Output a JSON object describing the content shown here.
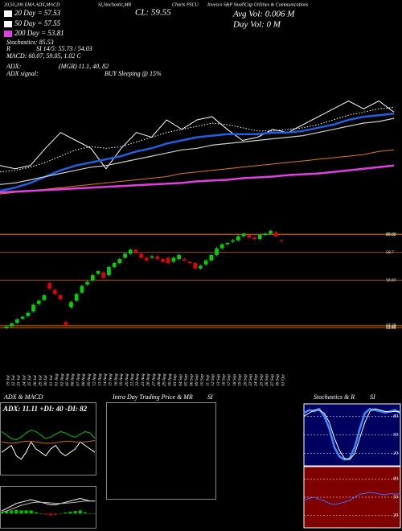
{
  "header": {
    "items": [
      "20,50,200 EMA ADX,MACD",
      "SI,Stochastic,MR",
      "Charts PSCU",
      "Invesco S&P SmallCap Utilities & Communications",
      "CL: 59.55",
      "Avg Vol: 0.006  M",
      "Day Vol: 0   M",
      "20 Day = 57.53",
      "50 Day = 57.55",
      "200 Day = 53.81",
      "Stochastics: 85.53",
      "R",
      "SI 14/5: 55.73 / 54.03",
      "MACD: 60.07, 59.05, 1.02  C",
      "ADX:",
      "(MGR) 11.1, 40, 82",
      "ADX  signal:",
      "BUY Sleeping @ 15%"
    ]
  },
  "chart_data": [
    {
      "type": "line",
      "categories": [
        null,
        null,
        null,
        null,
        null,
        null,
        null,
        null,
        null,
        null,
        null,
        null,
        null,
        null,
        null,
        null,
        null,
        null,
        null,
        null,
        null,
        null,
        null,
        null,
        null,
        null,
        null
      ],
      "ylim": [
        50,
        62
      ],
      "series": [
        {
          "color": "#ffffff",
          "style": "solid",
          "values": [
            52.0,
            51.8,
            52.0,
            53.1,
            54.1,
            53.6,
            53.1,
            51.8,
            53.1,
            54.1,
            53.8,
            54.9,
            54.3,
            54.9,
            55.1,
            54.3,
            53.6,
            53.8,
            54.3,
            54.1,
            54.6,
            55.1,
            55.6,
            56.1,
            55.6,
            56.1,
            55.4
          ]
        },
        {
          "color": "#ffffff",
          "style": "dotted",
          "values": [
            51.6,
            51.7,
            51.9,
            52.2,
            52.6,
            53.0,
            53.2,
            53.1,
            53.2,
            53.5,
            53.8,
            54.1,
            54.3,
            54.5,
            54.7,
            54.6,
            54.4,
            54.2,
            54.2,
            54.3,
            54.4,
            54.6,
            54.9,
            55.2,
            55.4,
            55.6,
            55.7
          ]
        },
        {
          "color": "#1f5fe0",
          "style": "thick",
          "values": [
            50.4,
            50.6,
            50.9,
            51.3,
            51.7,
            52.0,
            52.2,
            52.4,
            52.6,
            52.9,
            53.1,
            53.4,
            53.6,
            53.8,
            53.9,
            54.0,
            54.0,
            54.0,
            54.1,
            54.1,
            54.2,
            54.4,
            54.6,
            54.9,
            55.1,
            55.2,
            55.3
          ]
        },
        {
          "color": "#cccccc",
          "style": "band",
          "values": [
            50.8,
            50.9,
            51.1,
            51.3,
            51.5,
            51.7,
            51.9,
            52.0,
            52.2,
            52.4,
            52.6,
            52.8,
            53.0,
            53.1,
            53.3,
            53.4,
            53.5,
            53.6,
            53.7,
            53.8,
            53.9,
            54.1,
            54.3,
            54.5,
            54.7,
            54.8,
            55.0
          ]
        },
        {
          "color": "#e07a10",
          "style": "solid",
          "values": [
            50.2,
            50.3,
            50.4,
            50.5,
            50.6,
            50.7,
            50.8,
            50.9,
            51.0,
            51.1,
            51.2,
            51.3,
            51.5,
            51.6,
            51.7,
            51.8,
            51.9,
            52.0,
            52.1,
            52.2,
            52.3,
            52.4,
            52.5,
            52.6,
            52.7,
            52.9,
            53.0
          ]
        },
        {
          "color": "#e040e0",
          "style": "thick",
          "values": [
            50.3,
            50.35,
            50.4,
            50.45,
            50.5,
            50.55,
            50.6,
            50.65,
            50.7,
            50.75,
            50.8,
            50.85,
            50.9,
            51.0,
            51.05,
            51.1,
            51.2,
            51.25,
            51.3,
            51.4,
            51.45,
            51.5,
            51.6,
            51.7,
            51.8,
            51.9,
            52.0
          ]
        }
      ]
    },
    {
      "type": "candlestick",
      "ylim": [
        52.8,
        60.6
      ],
      "up_color": "#00d000",
      "down_color": "#e00000",
      "level_color": "#b05a00",
      "levels": [
        60.06,
        60.02,
        58.7,
        56.63,
        53.26,
        53.16,
        53.06
      ],
      "categories": [
        "19 Jul",
        "22 Jul",
        "23 Jul",
        "24 Jul",
        "25 Jul",
        "26 Jul",
        "29 Jul",
        "30 Jul",
        "31 Jul",
        "01 Aug",
        "02 Aug",
        "05 Aug",
        "06 Aug",
        "07 Aug",
        "08 Aug",
        "09 Aug",
        "12 Aug",
        "13 Aug",
        "14 Aug",
        "15 Aug",
        "16 Aug",
        "19 Aug",
        "20 Aug",
        "21 Aug",
        "22 Aug",
        "23 Aug",
        "26 Aug",
        "27 Aug",
        "28 Aug",
        "29 Aug",
        "30 Aug",
        "03 Sep",
        "04 Sep",
        "05 Sep",
        "06 Sep",
        "09 Sep",
        "10 Sep",
        "11 Sep",
        "12 Sep",
        "13 Sep",
        "16 Sep",
        "17 Sep",
        "18 Sep",
        "19 Sep",
        "20 Sep",
        "23 Sep",
        "24 Sep",
        "25 Sep",
        "26 Sep",
        "27 Sep",
        "30 Sep",
        "01 Oct"
      ],
      "open": [
        53.05,
        53.2,
        53.45,
        53.75,
        53.95,
        54.3,
        54.85,
        55.15,
        56.4,
        55.9,
        55.5,
        53.5,
        54.6,
        55.1,
        55.7,
        56.3,
        56.6,
        57.1,
        57.2,
        57.0,
        57.6,
        57.9,
        58.3,
        58.6,
        58.9,
        58.6,
        58.3,
        58.3,
        58.4,
        58.2,
        58.3,
        58.0,
        58.2,
        58.2,
        58.0,
        57.9,
        57.5,
        57.8,
        58.1,
        58.5,
        59.0,
        59.3,
        59.5,
        59.6,
        59.9,
        60.0,
        59.8,
        59.7,
        60.0,
        60.1,
        60.2,
        59.6
      ],
      "high": [
        53.25,
        53.5,
        53.8,
        54.0,
        54.3,
        54.9,
        55.2,
        55.6,
        56.5,
        56.0,
        55.6,
        53.6,
        55.1,
        55.7,
        56.3,
        56.6,
        57.1,
        57.4,
        57.3,
        57.7,
        58.0,
        58.3,
        58.7,
        59.0,
        59.0,
        58.7,
        58.4,
        58.5,
        58.5,
        58.3,
        58.4,
        58.4,
        58.6,
        58.3,
        58.1,
        58.0,
        57.8,
        58.2,
        58.6,
        59.1,
        59.4,
        59.5,
        59.7,
        60.0,
        60.2,
        60.1,
        59.9,
        60.1,
        60.2,
        60.4,
        60.3,
        59.7
      ],
      "low": [
        52.95,
        53.1,
        53.35,
        53.65,
        53.85,
        54.2,
        54.75,
        55.05,
        55.9,
        55.5,
        55.1,
        53.2,
        54.5,
        55.0,
        55.6,
        56.2,
        56.5,
        57.0,
        56.7,
        56.9,
        57.5,
        57.8,
        58.2,
        58.5,
        58.6,
        58.2,
        58.0,
        58.2,
        58.1,
        57.9,
        57.8,
        57.9,
        58.1,
        58.0,
        57.8,
        57.4,
        57.4,
        57.7,
        58.0,
        58.4,
        58.9,
        59.2,
        59.4,
        59.5,
        59.8,
        59.7,
        59.6,
        59.6,
        59.9,
        60.0,
        59.8,
        59.45
      ],
      "close": [
        53.15,
        53.4,
        53.7,
        53.9,
        54.2,
        54.8,
        55.1,
        55.5,
        56.0,
        55.6,
        55.2,
        53.3,
        55.0,
        55.6,
        56.2,
        56.5,
        57.0,
        57.3,
        56.8,
        57.6,
        57.9,
        58.2,
        58.6,
        58.9,
        58.7,
        58.3,
        58.1,
        58.4,
        58.2,
        58.0,
        57.9,
        58.3,
        58.5,
        58.1,
        57.9,
        57.5,
        57.7,
        58.1,
        58.5,
        59.0,
        59.3,
        59.4,
        59.6,
        59.9,
        60.1,
        59.8,
        59.7,
        60.0,
        60.1,
        60.3,
        59.9,
        59.55
      ]
    },
    {
      "type": "line",
      "title": "ADX & MACD",
      "subtitle": "ADX: 11.11 +DI: 40 -DI: 82",
      "ylim": [
        0,
        100
      ],
      "categories": [
        null,
        null,
        null,
        null,
        null,
        null,
        null,
        null,
        null,
        null,
        null,
        null,
        null,
        null,
        null,
        null,
        null,
        null,
        null,
        null
      ],
      "series": [
        {
          "color": "#00c000",
          "style": "solid",
          "values": [
            60,
            55,
            50,
            48,
            52,
            58,
            62,
            60,
            55,
            50,
            52,
            56,
            60,
            58,
            54,
            52,
            56,
            60,
            58,
            50
          ]
        },
        {
          "color": "#ffffff",
          "style": "solid",
          "values": [
            30,
            35,
            40,
            25,
            20,
            30,
            45,
            35,
            30,
            25,
            35,
            40,
            30,
            25,
            30,
            35,
            45,
            40,
            35,
            30
          ]
        },
        {
          "color": "#d07010",
          "style": "solid",
          "values": [
            45,
            44,
            43,
            44,
            45,
            46,
            46,
            45,
            44,
            43,
            43,
            44,
            45,
            46,
            46,
            45,
            44,
            45,
            46,
            47
          ]
        }
      ]
    },
    {
      "type": "macd",
      "ylim": [
        -1,
        2
      ],
      "up_color": "#00c000",
      "down_color": "#c00000",
      "categories": [
        null,
        null,
        null,
        null,
        null,
        null,
        null,
        null,
        null,
        null,
        null,
        null,
        null,
        null,
        null,
        null,
        null,
        null,
        null,
        null
      ],
      "histogram": [
        0.1,
        0.2,
        0.25,
        0.3,
        0.25,
        0.25,
        0.25,
        0.1,
        0,
        -0.08,
        -0.15,
        -0.1,
        0,
        0.08,
        0.14,
        0.2,
        0.25,
        0.1,
        0,
        0
      ],
      "series": [
        {
          "color": "#ffffff",
          "style": "solid",
          "values": [
            0.2,
            0.4,
            0.6,
            0.8,
            0.9,
            1.0,
            1.1,
            1.0,
            0.9,
            0.8,
            0.7,
            0.7,
            0.8,
            0.9,
            1.0,
            1.1,
            1.2,
            1.1,
            1.0,
            1.0
          ]
        },
        {
          "color": "#bbbbbb",
          "style": "solid",
          "values": [
            0.1,
            0.2,
            0.35,
            0.5,
            0.65,
            0.75,
            0.85,
            0.9,
            0.9,
            0.88,
            0.85,
            0.8,
            0.8,
            0.82,
            0.86,
            0.9,
            0.95,
            1.0,
            1.0,
            1.0
          ]
        }
      ]
    },
    {
      "type": "empty",
      "title": "Intra Day Trading Price & MR",
      "subtitle": "SI"
    },
    {
      "type": "line",
      "title": "Stochastics & R",
      "subtitle": "SI",
      "background": "#000060",
      "ylim": [
        0,
        100
      ],
      "yticks": [
        80,
        50,
        20
      ],
      "categories": [
        null,
        null,
        null,
        null,
        null,
        null,
        null,
        null,
        null,
        null,
        null,
        null,
        null,
        null,
        null,
        null,
        null,
        null,
        null,
        null
      ],
      "series": [
        {
          "color": "#3a8cff",
          "style": "thick",
          "values": [
            85,
            90,
            88,
            92,
            80,
            60,
            30,
            15,
            10,
            12,
            30,
            60,
            85,
            92,
            90,
            88,
            86,
            88,
            90,
            85
          ]
        },
        {
          "color": "#ffffff",
          "style": "solid",
          "values": [
            80,
            85,
            90,
            90,
            85,
            70,
            45,
            25,
            12,
            10,
            20,
            45,
            70,
            88,
            92,
            90,
            88,
            87,
            88,
            87
          ]
        }
      ]
    },
    {
      "type": "line",
      "background": "#800000",
      "ylim": [
        0,
        100
      ],
      "yticks": [
        80,
        50,
        20
      ],
      "categories": [
        null,
        null,
        null,
        null,
        null,
        null,
        null,
        null,
        null,
        null,
        null,
        null,
        null,
        null,
        null,
        null,
        null,
        null,
        null,
        null
      ],
      "series": [
        {
          "color": "#3a6cff",
          "style": "solid",
          "values": [
            45,
            48,
            50,
            47,
            44,
            40,
            38,
            40,
            42,
            45,
            50,
            55,
            56,
            58,
            57,
            55,
            54,
            56,
            55,
            56
          ]
        }
      ]
    }
  ]
}
